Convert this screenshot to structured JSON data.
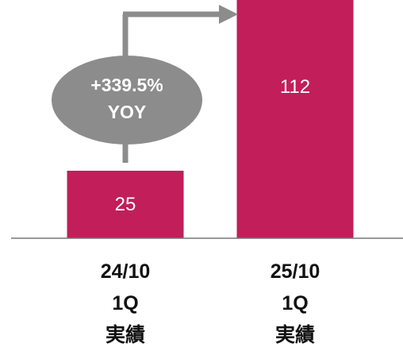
{
  "chart_data": {
    "type": "bar",
    "categories": [
      "24/10\n1Q\n実績",
      "25/10\n1Q\n実績"
    ],
    "values": [
      25,
      112
    ],
    "color": "#c21e59",
    "annotation": "+339.5%\nYOY"
  }
}
